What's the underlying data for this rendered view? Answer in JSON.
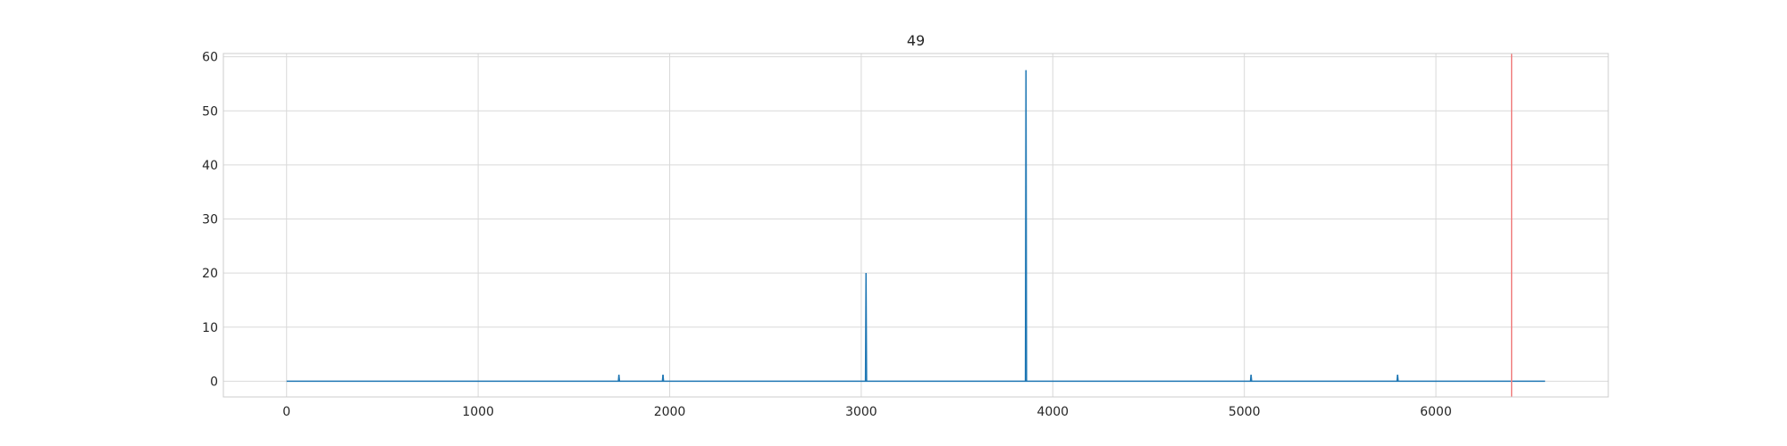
{
  "chart_data": {
    "type": "line",
    "title": "49",
    "xlabel": "",
    "ylabel": "",
    "xlim": [
      -330,
      6900
    ],
    "ylim": [
      -2.9,
      60.6
    ],
    "xticks": [
      0,
      1000,
      2000,
      3000,
      4000,
      5000,
      6000
    ],
    "yticks": [
      0,
      10,
      20,
      30,
      40,
      50,
      60
    ],
    "grid": true,
    "series": [
      {
        "color": "#1f77b4",
        "x_range": [
          0,
          6570
        ],
        "baseline": 0,
        "spikes": [
          {
            "x": 1735,
            "y": 1.2
          },
          {
            "x": 1965,
            "y": 1.2
          },
          {
            "x": 3025,
            "y": 20
          },
          {
            "x": 3860,
            "y": 57.5
          },
          {
            "x": 5035,
            "y": 1.2
          },
          {
            "x": 5800,
            "y": 1.2
          }
        ]
      }
    ],
    "vline": {
      "x": 6395,
      "color": "#f08080"
    }
  }
}
